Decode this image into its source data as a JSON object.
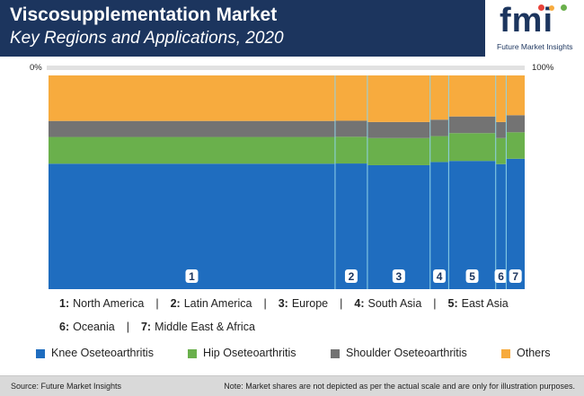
{
  "header": {
    "title": "Viscosupplementation Market",
    "subtitle": "Key Regions and Applications, 2020",
    "logo_text": "fmi",
    "logo_subtext": "Future Market Insights"
  },
  "scale": {
    "left_label": "0%",
    "right_label": "100%"
  },
  "region_legend": {
    "row1": [
      {
        "num": "1:",
        "name": "North America"
      },
      {
        "num": "2:",
        "name": "Latin America"
      },
      {
        "num": "3:",
        "name": "Europe"
      },
      {
        "num": "4:",
        "name": "South Asia"
      },
      {
        "num": "5:",
        "name": "East Asia"
      }
    ],
    "row2": [
      {
        "num": "6:",
        "name": "Oceania"
      },
      {
        "num": "7:",
        "name": "Middle East & Africa"
      }
    ],
    "separator": "|"
  },
  "footer": {
    "source": "Source: Future Market Insights",
    "note": "Note: Market shares are not depicted as per the actual scale and are only for illustration purposes."
  },
  "chart_data": {
    "type": "bar",
    "subtype": "marimekko (variable-width 100% stacked columns)",
    "categories": [
      "1",
      "2",
      "3",
      "4",
      "5",
      "6",
      "7"
    ],
    "widths": [
      60.3,
      6.8,
      13.2,
      3.9,
      9.9,
      2.2,
      3.9
    ],
    "series": [
      {
        "name": "Knee Oseteoarthritis",
        "color": "#1f6dbf",
        "values": [
          58.7,
          58.8,
          58.0,
          59.5,
          60.0,
          58.5,
          61.0
        ]
      },
      {
        "name": "Hip  Oseteoarthritis",
        "color": "#6ab04c",
        "values": [
          12.5,
          12.5,
          12.7,
          12.1,
          13.0,
          12.2,
          12.4
        ]
      },
      {
        "name": "Shoulder Oseteoarthritis",
        "color": "#737373",
        "values": [
          7.5,
          7.5,
          7.5,
          7.7,
          7.8,
          7.5,
          8.0
        ]
      },
      {
        "name": "Others",
        "color": "#f7ab3e",
        "values": [
          21.3,
          21.2,
          21.8,
          20.7,
          19.2,
          21.8,
          18.6
        ]
      }
    ],
    "ylim": [
      0,
      100
    ],
    "legend_position": "bottom"
  }
}
